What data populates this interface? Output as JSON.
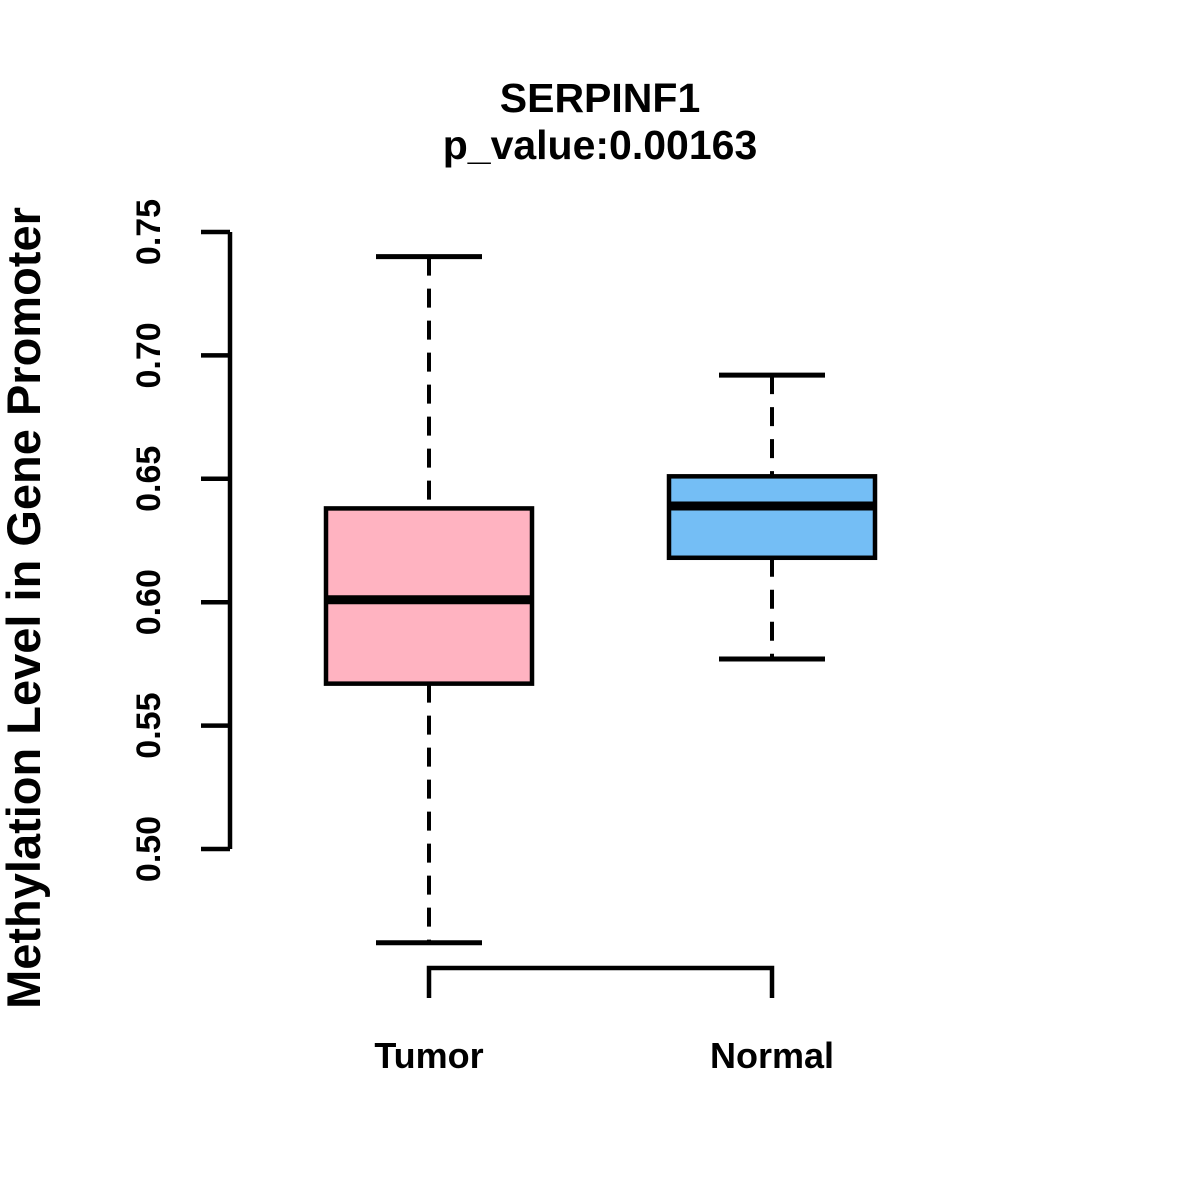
{
  "chart_data": {
    "type": "boxplot",
    "title": "SERPINF1",
    "subtitle": "p_value:0.00163",
    "ylabel": "Methylation Level in Gene Promoter",
    "xlabel": "",
    "ylim": [
      0.5,
      0.75
    ],
    "yticks": [
      0.75,
      0.7,
      0.65,
      0.6,
      0.55,
      0.5
    ],
    "ytick_labels": [
      "0.75",
      "0.70",
      "0.65",
      "0.60",
      "0.55",
      "0.50"
    ],
    "categories": [
      "Tumor",
      "Normal"
    ],
    "series": [
      {
        "name": "Tumor",
        "color": "#FFB3C1",
        "whisker_low": 0.462,
        "q1": 0.567,
        "median": 0.601,
        "q3": 0.638,
        "whisker_high": 0.74
      },
      {
        "name": "Normal",
        "color": "#74BEF5",
        "whisker_low": 0.577,
        "q1": 0.618,
        "median": 0.639,
        "q3": 0.651,
        "whisker_high": 0.692
      }
    ],
    "grid": false,
    "legend_position": "none",
    "axis_color": "#000000",
    "border_color": "#000000",
    "background_color": "#ffffff"
  }
}
